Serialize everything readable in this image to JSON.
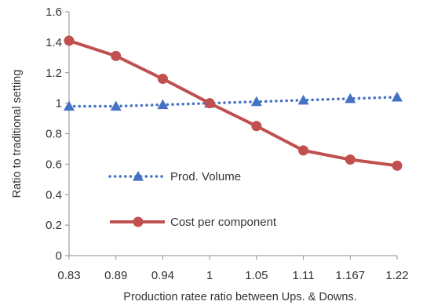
{
  "chart_data": {
    "type": "line",
    "categories": [
      "0.83",
      "0.89",
      "0.94",
      "1",
      "1.05",
      "1.11",
      "1.167",
      "1.22"
    ],
    "xlabel": "Production ratee ratio between Ups. & Downs.",
    "ylabel": "Ratio to traditional setting",
    "ylim": [
      0,
      1.6
    ],
    "yticks": [
      "0",
      "0.2",
      "0.4",
      "0.6",
      "0.8",
      "1",
      "1.2",
      "1.4",
      "1.6"
    ],
    "grid": false,
    "legend_position": "center-left",
    "series": [
      {
        "name": "Prod. Volume",
        "values": [
          0.98,
          0.98,
          0.99,
          1.0,
          1.01,
          1.02,
          1.03,
          1.04
        ],
        "color": "#4472C4",
        "line_style": "dotted",
        "marker": "triangle"
      },
      {
        "name": "Cost per component",
        "values": [
          1.41,
          1.31,
          1.16,
          1.0,
          0.85,
          0.69,
          0.63,
          0.59
        ],
        "color": "#C0504D",
        "line_style": "solid",
        "marker": "circle"
      }
    ]
  }
}
